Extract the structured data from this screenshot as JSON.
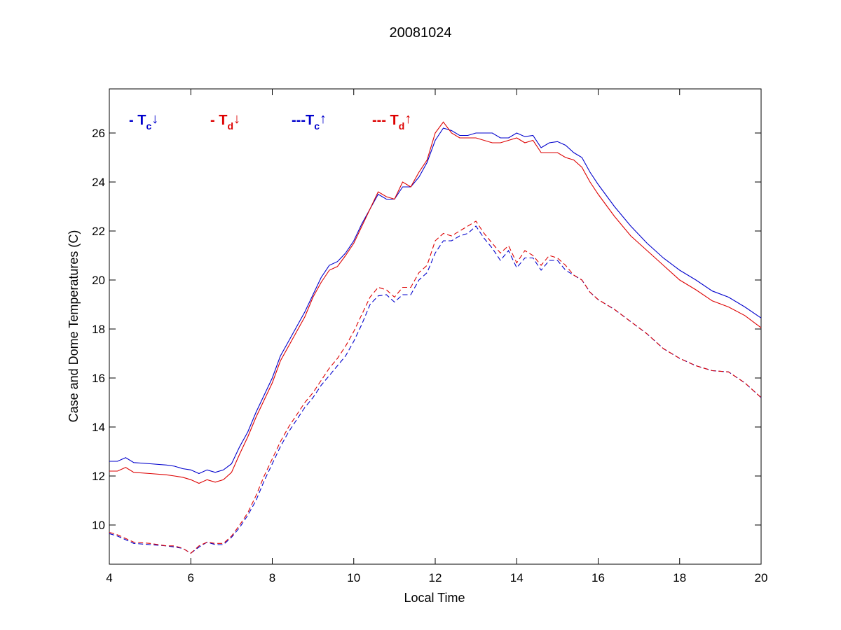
{
  "chart_data": {
    "type": "line",
    "title": "20081024",
    "xlabel": "Local Time",
    "ylabel": "Case and Dome Temperatures (C)",
    "xlim": [
      4,
      20
    ],
    "ylim": [
      8.4,
      27.8
    ],
    "xticks": [
      4,
      6,
      8,
      10,
      12,
      14,
      16,
      18,
      20
    ],
    "yticks": [
      10,
      12,
      14,
      16,
      18,
      20,
      22,
      24,
      26
    ],
    "grid": false,
    "legend_position": "top-left",
    "legend": [
      {
        "prefix": "- T",
        "sub": "c",
        "arrow": "↓",
        "color": "#0000cc"
      },
      {
        "prefix": "- T",
        "sub": "d",
        "arrow": "↓",
        "color": "#dd0000"
      },
      {
        "prefix": "---T",
        "sub": "c",
        "arrow": "↑",
        "color": "#0000cc"
      },
      {
        "prefix": "--- T",
        "sub": "d",
        "arrow": "↑",
        "color": "#dd0000"
      }
    ],
    "series": [
      {
        "color": "#0000cc",
        "dash": "solid",
        "points": [
          [
            4.0,
            12.6
          ],
          [
            4.2,
            12.6
          ],
          [
            4.4,
            12.75
          ],
          [
            4.6,
            12.55
          ],
          [
            5.0,
            12.5
          ],
          [
            5.4,
            12.45
          ],
          [
            5.6,
            12.4
          ],
          [
            5.8,
            12.3
          ],
          [
            6.0,
            12.25
          ],
          [
            6.2,
            12.1
          ],
          [
            6.4,
            12.25
          ],
          [
            6.6,
            12.15
          ],
          [
            6.8,
            12.25
          ],
          [
            7.0,
            12.5
          ],
          [
            7.2,
            13.2
          ],
          [
            7.4,
            13.8
          ],
          [
            7.6,
            14.6
          ],
          [
            7.8,
            15.3
          ],
          [
            8.0,
            16.0
          ],
          [
            8.2,
            16.9
          ],
          [
            8.4,
            17.5
          ],
          [
            8.6,
            18.1
          ],
          [
            8.8,
            18.7
          ],
          [
            9.0,
            19.4
          ],
          [
            9.2,
            20.1
          ],
          [
            9.4,
            20.6
          ],
          [
            9.6,
            20.75
          ],
          [
            9.8,
            21.1
          ],
          [
            10.0,
            21.6
          ],
          [
            10.2,
            22.3
          ],
          [
            10.4,
            22.9
          ],
          [
            10.6,
            23.5
          ],
          [
            10.8,
            23.3
          ],
          [
            11.0,
            23.3
          ],
          [
            11.2,
            23.8
          ],
          [
            11.4,
            23.8
          ],
          [
            11.6,
            24.2
          ],
          [
            11.8,
            24.8
          ],
          [
            12.0,
            25.7
          ],
          [
            12.2,
            26.2
          ],
          [
            12.4,
            26.1
          ],
          [
            12.6,
            25.9
          ],
          [
            12.8,
            25.9
          ],
          [
            13.0,
            26.0
          ],
          [
            13.4,
            26.0
          ],
          [
            13.6,
            25.8
          ],
          [
            13.8,
            25.8
          ],
          [
            14.0,
            26.0
          ],
          [
            14.2,
            25.85
          ],
          [
            14.4,
            25.9
          ],
          [
            14.6,
            25.4
          ],
          [
            14.8,
            25.6
          ],
          [
            15.0,
            25.65
          ],
          [
            15.2,
            25.5
          ],
          [
            15.4,
            25.2
          ],
          [
            15.6,
            25.0
          ],
          [
            15.8,
            24.4
          ],
          [
            16.0,
            23.9
          ],
          [
            16.4,
            23.0
          ],
          [
            16.8,
            22.2
          ],
          [
            17.2,
            21.5
          ],
          [
            17.6,
            20.9
          ],
          [
            18.0,
            20.4
          ],
          [
            18.4,
            20.0
          ],
          [
            18.8,
            19.55
          ],
          [
            19.2,
            19.3
          ],
          [
            19.6,
            18.9
          ],
          [
            20.0,
            18.45
          ]
        ]
      },
      {
        "color": "#dd0000",
        "dash": "solid",
        "points": [
          [
            4.0,
            12.2
          ],
          [
            4.2,
            12.2
          ],
          [
            4.4,
            12.35
          ],
          [
            4.6,
            12.15
          ],
          [
            5.0,
            12.1
          ],
          [
            5.4,
            12.05
          ],
          [
            5.6,
            12.0
          ],
          [
            5.8,
            11.95
          ],
          [
            6.0,
            11.85
          ],
          [
            6.2,
            11.7
          ],
          [
            6.4,
            11.85
          ],
          [
            6.6,
            11.75
          ],
          [
            6.8,
            11.85
          ],
          [
            7.0,
            12.15
          ],
          [
            7.2,
            12.9
          ],
          [
            7.4,
            13.6
          ],
          [
            7.6,
            14.4
          ],
          [
            7.8,
            15.1
          ],
          [
            8.0,
            15.8
          ],
          [
            8.2,
            16.7
          ],
          [
            8.4,
            17.3
          ],
          [
            8.6,
            17.9
          ],
          [
            8.8,
            18.5
          ],
          [
            9.0,
            19.3
          ],
          [
            9.2,
            19.9
          ],
          [
            9.4,
            20.4
          ],
          [
            9.6,
            20.55
          ],
          [
            9.8,
            21.0
          ],
          [
            10.0,
            21.5
          ],
          [
            10.2,
            22.2
          ],
          [
            10.4,
            22.9
          ],
          [
            10.6,
            23.6
          ],
          [
            10.8,
            23.4
          ],
          [
            11.0,
            23.3
          ],
          [
            11.2,
            24.0
          ],
          [
            11.4,
            23.8
          ],
          [
            11.6,
            24.4
          ],
          [
            11.8,
            24.9
          ],
          [
            12.0,
            26.0
          ],
          [
            12.2,
            26.45
          ],
          [
            12.4,
            26.0
          ],
          [
            12.6,
            25.8
          ],
          [
            12.8,
            25.8
          ],
          [
            13.0,
            25.8
          ],
          [
            13.4,
            25.6
          ],
          [
            13.6,
            25.6
          ],
          [
            13.8,
            25.7
          ],
          [
            14.0,
            25.8
          ],
          [
            14.2,
            25.6
          ],
          [
            14.4,
            25.7
          ],
          [
            14.6,
            25.2
          ],
          [
            14.8,
            25.2
          ],
          [
            15.0,
            25.2
          ],
          [
            15.2,
            25.0
          ],
          [
            15.4,
            24.9
          ],
          [
            15.6,
            24.6
          ],
          [
            15.8,
            24.0
          ],
          [
            16.0,
            23.5
          ],
          [
            16.4,
            22.6
          ],
          [
            16.8,
            21.8
          ],
          [
            17.2,
            21.2
          ],
          [
            17.6,
            20.6
          ],
          [
            18.0,
            20.0
          ],
          [
            18.4,
            19.6
          ],
          [
            18.8,
            19.15
          ],
          [
            19.2,
            18.9
          ],
          [
            19.6,
            18.55
          ],
          [
            20.0,
            18.05
          ]
        ]
      },
      {
        "color": "#0000cc",
        "dash": "dashed",
        "points": [
          [
            4.0,
            9.65
          ],
          [
            4.2,
            9.55
          ],
          [
            4.4,
            9.4
          ],
          [
            4.6,
            9.25
          ],
          [
            5.0,
            9.2
          ],
          [
            5.4,
            9.15
          ],
          [
            5.6,
            9.1
          ],
          [
            5.8,
            9.05
          ],
          [
            6.0,
            8.85
          ],
          [
            6.2,
            9.1
          ],
          [
            6.4,
            9.3
          ],
          [
            6.6,
            9.2
          ],
          [
            6.8,
            9.2
          ],
          [
            7.0,
            9.5
          ],
          [
            7.2,
            9.9
          ],
          [
            7.4,
            10.4
          ],
          [
            7.6,
            11.0
          ],
          [
            7.8,
            11.8
          ],
          [
            8.0,
            12.5
          ],
          [
            8.2,
            13.2
          ],
          [
            8.4,
            13.8
          ],
          [
            8.6,
            14.3
          ],
          [
            8.8,
            14.8
          ],
          [
            9.0,
            15.2
          ],
          [
            9.2,
            15.7
          ],
          [
            9.4,
            16.1
          ],
          [
            9.6,
            16.5
          ],
          [
            9.8,
            16.9
          ],
          [
            10.0,
            17.5
          ],
          [
            10.2,
            18.2
          ],
          [
            10.4,
            19.0
          ],
          [
            10.6,
            19.35
          ],
          [
            10.8,
            19.4
          ],
          [
            11.0,
            19.1
          ],
          [
            11.2,
            19.4
          ],
          [
            11.4,
            19.4
          ],
          [
            11.6,
            20.0
          ],
          [
            11.8,
            20.3
          ],
          [
            12.0,
            21.1
          ],
          [
            12.2,
            21.6
          ],
          [
            12.4,
            21.6
          ],
          [
            12.6,
            21.8
          ],
          [
            12.8,
            21.9
          ],
          [
            13.0,
            22.2
          ],
          [
            13.2,
            21.7
          ],
          [
            13.4,
            21.3
          ],
          [
            13.6,
            20.8
          ],
          [
            13.8,
            21.2
          ],
          [
            14.0,
            20.5
          ],
          [
            14.2,
            20.9
          ],
          [
            14.4,
            20.9
          ],
          [
            14.6,
            20.4
          ],
          [
            14.8,
            20.8
          ],
          [
            15.0,
            20.8
          ],
          [
            15.2,
            20.4
          ],
          [
            15.4,
            20.2
          ],
          [
            15.6,
            20.0
          ],
          [
            15.8,
            19.5
          ],
          [
            16.0,
            19.2
          ],
          [
            16.4,
            18.8
          ],
          [
            16.8,
            18.3
          ],
          [
            17.2,
            17.8
          ],
          [
            17.6,
            17.2
          ],
          [
            18.0,
            16.8
          ],
          [
            18.4,
            16.5
          ],
          [
            18.8,
            16.3
          ],
          [
            19.2,
            16.25
          ],
          [
            19.6,
            15.8
          ],
          [
            20.0,
            15.2
          ]
        ]
      },
      {
        "color": "#dd0000",
        "dash": "dashed",
        "points": [
          [
            4.0,
            9.7
          ],
          [
            4.2,
            9.6
          ],
          [
            4.4,
            9.45
          ],
          [
            4.6,
            9.3
          ],
          [
            5.0,
            9.25
          ],
          [
            5.4,
            9.15
          ],
          [
            5.6,
            9.15
          ],
          [
            5.8,
            9.05
          ],
          [
            6.0,
            8.85
          ],
          [
            6.2,
            9.15
          ],
          [
            6.4,
            9.3
          ],
          [
            6.6,
            9.25
          ],
          [
            6.8,
            9.25
          ],
          [
            7.0,
            9.55
          ],
          [
            7.2,
            10.0
          ],
          [
            7.4,
            10.5
          ],
          [
            7.6,
            11.2
          ],
          [
            7.8,
            12.0
          ],
          [
            8.0,
            12.7
          ],
          [
            8.2,
            13.4
          ],
          [
            8.4,
            14.0
          ],
          [
            8.6,
            14.5
          ],
          [
            8.8,
            15.0
          ],
          [
            9.0,
            15.4
          ],
          [
            9.2,
            15.9
          ],
          [
            9.4,
            16.4
          ],
          [
            9.6,
            16.8
          ],
          [
            9.8,
            17.3
          ],
          [
            10.0,
            17.9
          ],
          [
            10.2,
            18.6
          ],
          [
            10.4,
            19.3
          ],
          [
            10.6,
            19.7
          ],
          [
            10.8,
            19.6
          ],
          [
            11.0,
            19.3
          ],
          [
            11.2,
            19.7
          ],
          [
            11.4,
            19.7
          ],
          [
            11.6,
            20.3
          ],
          [
            11.8,
            20.6
          ],
          [
            12.0,
            21.6
          ],
          [
            12.2,
            21.9
          ],
          [
            12.4,
            21.8
          ],
          [
            12.6,
            22.0
          ],
          [
            12.8,
            22.2
          ],
          [
            13.0,
            22.4
          ],
          [
            13.2,
            21.9
          ],
          [
            13.4,
            21.5
          ],
          [
            13.6,
            21.1
          ],
          [
            13.8,
            21.4
          ],
          [
            14.0,
            20.7
          ],
          [
            14.2,
            21.2
          ],
          [
            14.4,
            21.0
          ],
          [
            14.6,
            20.6
          ],
          [
            14.8,
            21.0
          ],
          [
            15.0,
            20.9
          ],
          [
            15.2,
            20.6
          ],
          [
            15.4,
            20.2
          ],
          [
            15.6,
            20.0
          ],
          [
            15.8,
            19.5
          ],
          [
            16.0,
            19.2
          ],
          [
            16.4,
            18.8
          ],
          [
            16.8,
            18.3
          ],
          [
            17.2,
            17.8
          ],
          [
            17.6,
            17.2
          ],
          [
            18.0,
            16.8
          ],
          [
            18.4,
            16.5
          ],
          [
            18.8,
            16.3
          ],
          [
            19.2,
            16.25
          ],
          [
            19.6,
            15.8
          ],
          [
            20.0,
            15.2
          ]
        ]
      }
    ]
  }
}
